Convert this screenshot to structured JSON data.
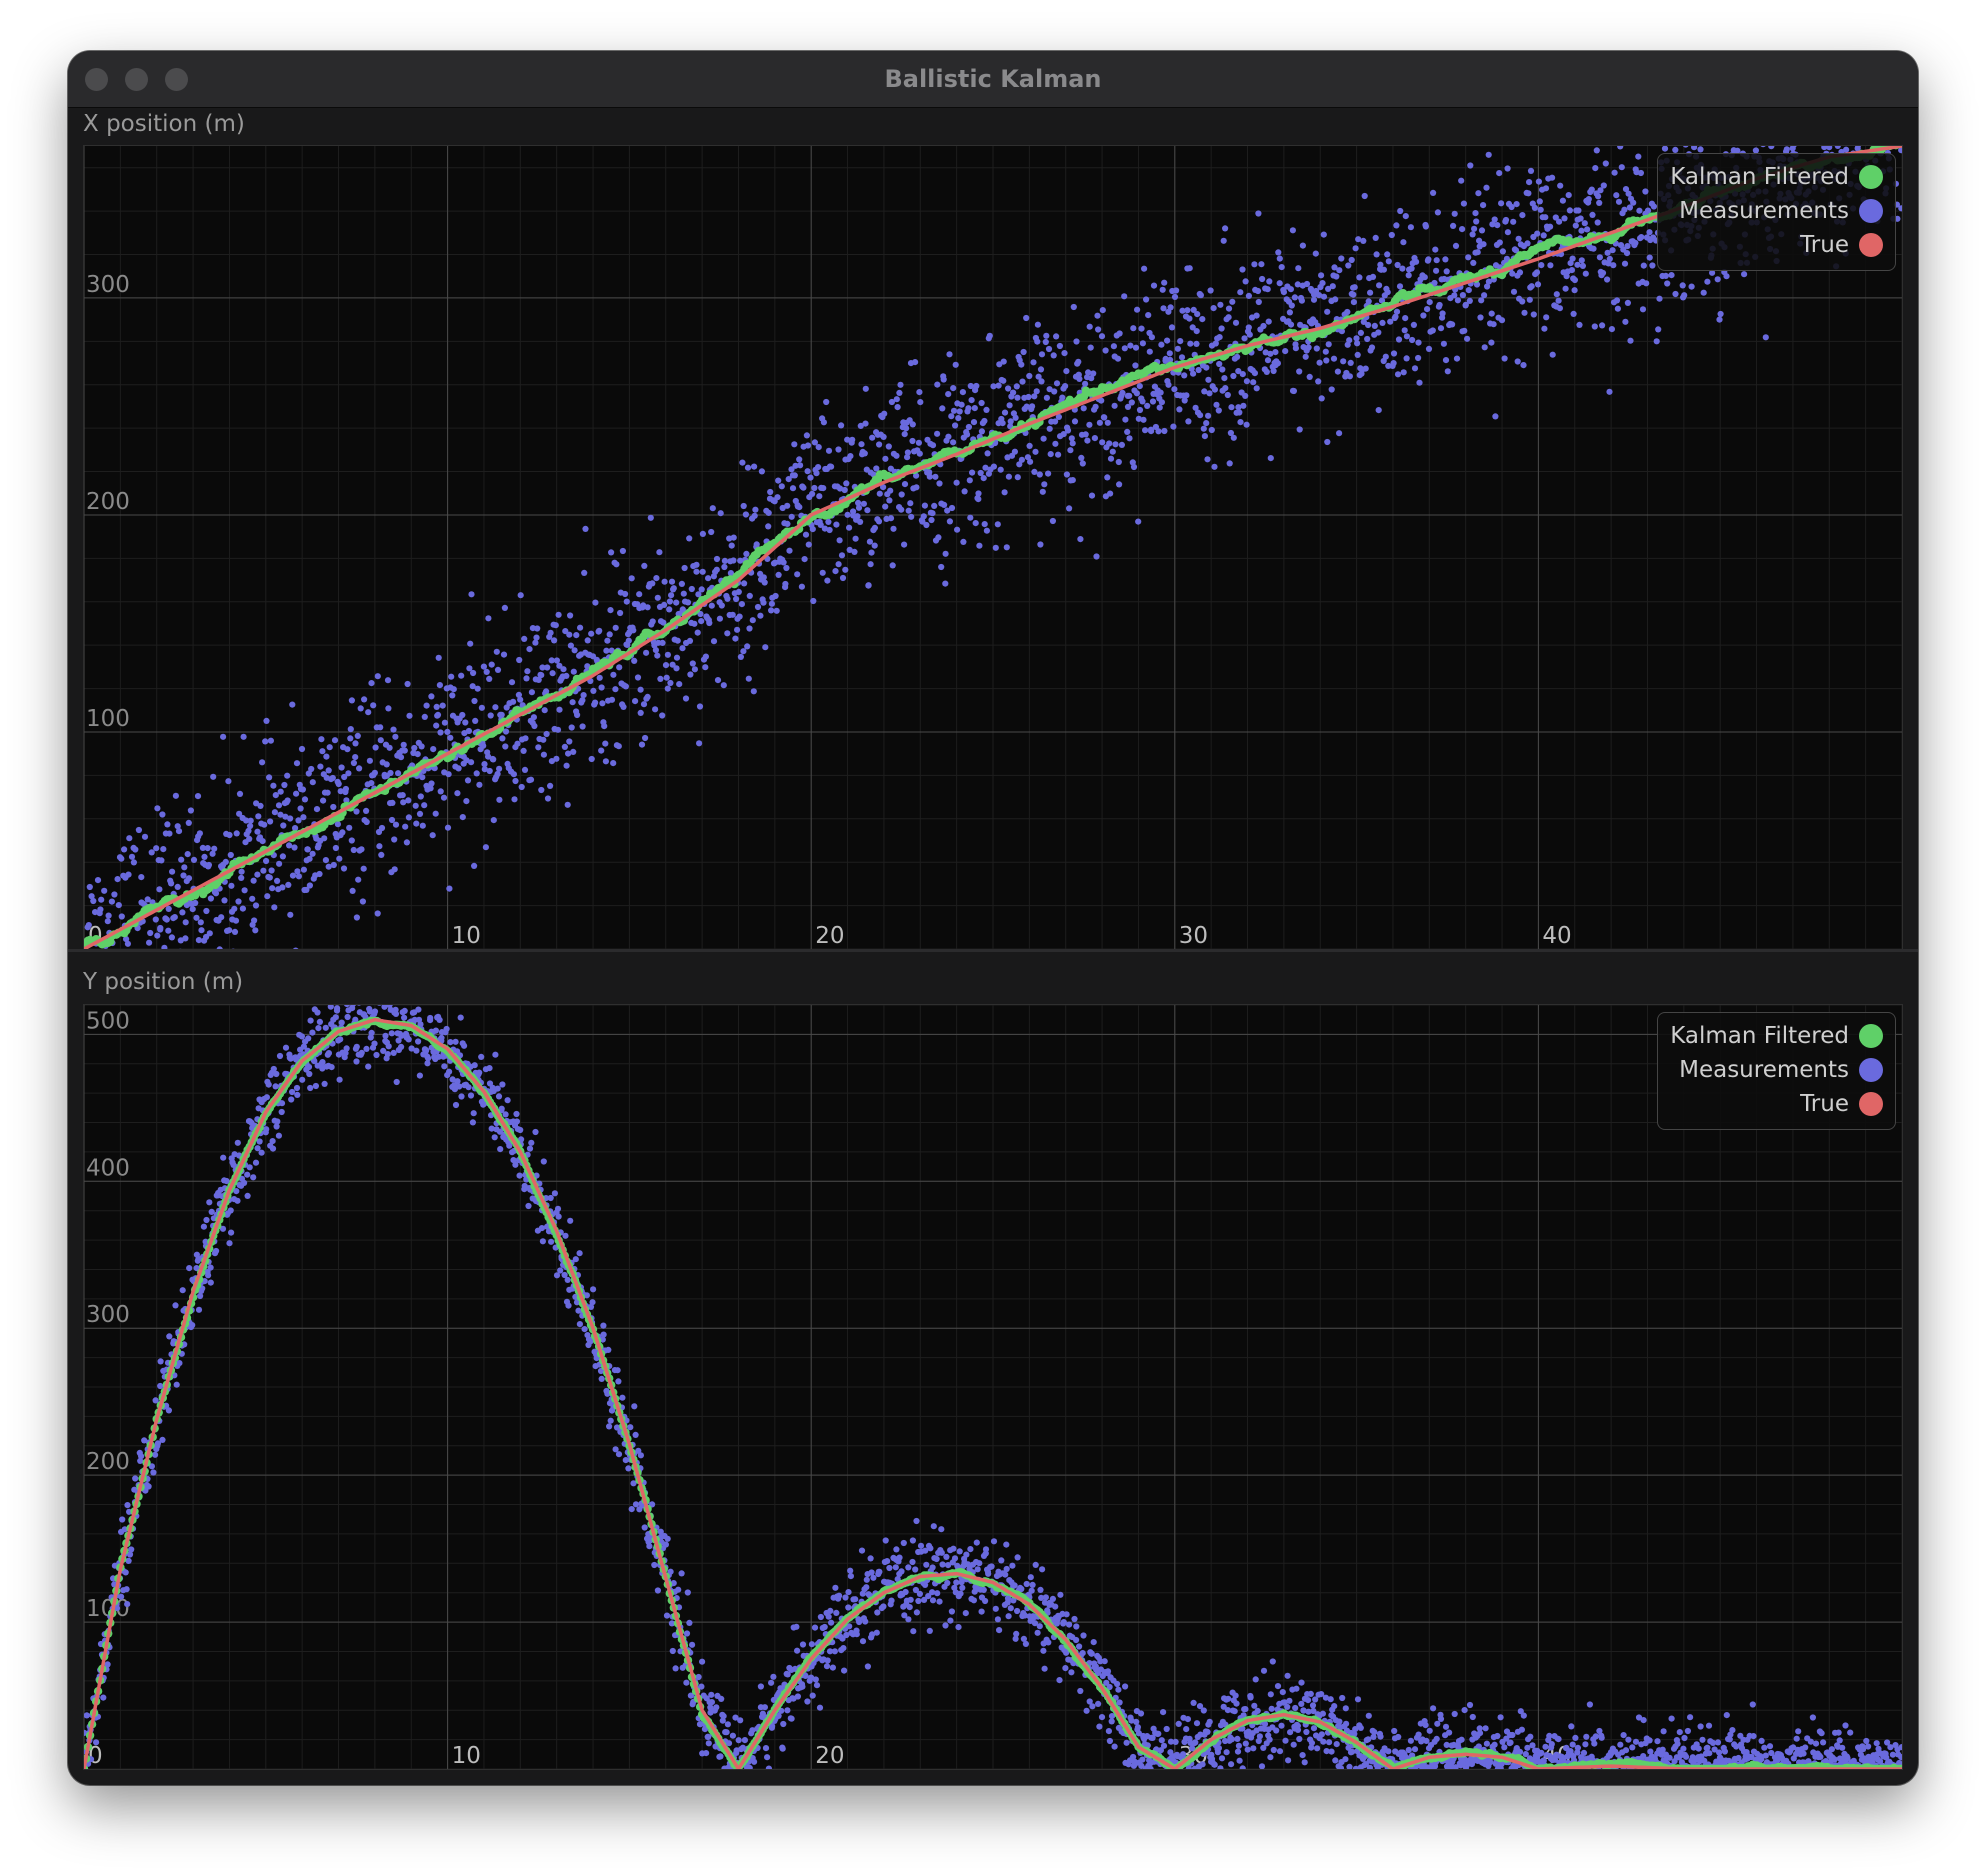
{
  "window": {
    "title": "Ballistic Kalman"
  },
  "chart_data": [
    {
      "type": "scatter",
      "title": "X position (m)",
      "xlim": [
        0,
        50
      ],
      "ylim": [
        0,
        370
      ],
      "x_ticks": [
        "0",
        "10",
        "20",
        "30",
        "40"
      ],
      "y_ticks": [
        "100",
        "200",
        "300"
      ],
      "legend_position": "top-right",
      "grid": true,
      "series": [
        {
          "name": "Kalman Filtered",
          "color": "#5fd068",
          "style": "points",
          "x": [
            0,
            2,
            4,
            6,
            8,
            10,
            12,
            14,
            16,
            18,
            20,
            22,
            24,
            26,
            28,
            30,
            32,
            34,
            36,
            38,
            40,
            42,
            44,
            46,
            48,
            50
          ],
          "y": [
            0,
            18,
            36,
            54,
            72,
            90,
            108,
            126,
            147,
            170,
            200,
            215,
            228,
            242,
            255,
            268,
            278,
            286,
            296,
            307,
            318,
            330,
            342,
            355,
            365,
            370
          ]
        },
        {
          "name": "Measurements",
          "color": "#6a6ade",
          "style": "noisy-points",
          "x": [
            0,
            2,
            4,
            6,
            8,
            10,
            12,
            14,
            16,
            18,
            20,
            22,
            24,
            26,
            28,
            30,
            32,
            34,
            36,
            38,
            40,
            42,
            44,
            46,
            48,
            50
          ],
          "y": [
            0,
            18,
            36,
            54,
            72,
            90,
            108,
            126,
            147,
            170,
            200,
            215,
            228,
            242,
            255,
            268,
            278,
            286,
            296,
            307,
            318,
            330,
            342,
            355,
            365,
            370
          ]
        },
        {
          "name": "True",
          "color": "#e06666",
          "style": "line",
          "x": [
            0,
            2,
            4,
            6,
            8,
            10,
            12,
            14,
            16,
            18,
            20,
            22,
            24,
            26,
            28,
            30,
            32,
            34,
            36,
            38,
            40,
            42,
            44,
            46,
            48,
            50
          ],
          "y": [
            0,
            18,
            36,
            54,
            72,
            90,
            108,
            126,
            147,
            170,
            200,
            215,
            228,
            242,
            255,
            268,
            278,
            286,
            296,
            307,
            318,
            330,
            342,
            355,
            365,
            370
          ]
        }
      ]
    },
    {
      "type": "scatter",
      "title": "Y position (m)",
      "xlim": [
        0,
        50
      ],
      "ylim": [
        0,
        520
      ],
      "x_ticks": [
        "0",
        "10",
        "20",
        "30",
        "40"
      ],
      "y_ticks": [
        "100",
        "200",
        "300",
        "400",
        "500"
      ],
      "legend_position": "top-right",
      "grid": true,
      "series": [
        {
          "name": "Kalman Filtered",
          "color": "#5fd068",
          "style": "points",
          "x": [
            0,
            1,
            2,
            3,
            4,
            5,
            6,
            7,
            8,
            9,
            10,
            11,
            12,
            13,
            14,
            15,
            16,
            17,
            18,
            19,
            20,
            21,
            22,
            23,
            24,
            25,
            26,
            27,
            28,
            29,
            30,
            31,
            32,
            33,
            34,
            35,
            36,
            37,
            38,
            39,
            40,
            42,
            44,
            46,
            48,
            50
          ],
          "y": [
            0,
            136,
            238,
            325,
            394,
            447,
            482,
            502,
            510,
            506,
            490,
            461,
            420,
            366,
            300,
            221,
            130,
            40,
            0,
            40,
            75,
            102,
            120,
            131,
            133,
            127,
            112,
            88,
            55,
            15,
            0,
            20,
            33,
            37,
            32,
            18,
            0,
            8,
            10,
            8,
            0,
            2,
            0,
            0,
            0,
            0
          ]
        },
        {
          "name": "Measurements",
          "color": "#6a6ade",
          "style": "noisy-points",
          "x": [
            0,
            1,
            2,
            3,
            4,
            5,
            6,
            7,
            8,
            9,
            10,
            11,
            12,
            13,
            14,
            15,
            16,
            17,
            18,
            19,
            20,
            21,
            22,
            23,
            24,
            25,
            26,
            27,
            28,
            29,
            30,
            31,
            32,
            33,
            34,
            35,
            36,
            37,
            38,
            39,
            40,
            42,
            44,
            46,
            48,
            50
          ],
          "y": [
            0,
            136,
            238,
            325,
            394,
            447,
            482,
            502,
            510,
            506,
            490,
            461,
            420,
            366,
            300,
            221,
            130,
            40,
            0,
            40,
            75,
            102,
            120,
            131,
            133,
            127,
            112,
            88,
            55,
            15,
            0,
            20,
            33,
            37,
            32,
            18,
            0,
            8,
            10,
            8,
            0,
            2,
            0,
            0,
            0,
            0
          ]
        },
        {
          "name": "True",
          "color": "#e06666",
          "style": "line",
          "x": [
            0,
            1,
            2,
            3,
            4,
            5,
            6,
            7,
            8,
            9,
            10,
            11,
            12,
            13,
            14,
            15,
            16,
            17,
            18,
            19,
            20,
            21,
            22,
            23,
            24,
            25,
            26,
            27,
            28,
            29,
            30,
            31,
            32,
            33,
            34,
            35,
            36,
            37,
            38,
            39,
            40,
            42,
            44,
            46,
            48,
            50
          ],
          "y": [
            0,
            136,
            238,
            325,
            394,
            447,
            482,
            502,
            510,
            506,
            490,
            461,
            420,
            366,
            300,
            221,
            130,
            40,
            0,
            40,
            75,
            102,
            120,
            131,
            133,
            127,
            112,
            88,
            55,
            15,
            0,
            20,
            33,
            37,
            32,
            18,
            0,
            8,
            10,
            8,
            0,
            2,
            0,
            0,
            0,
            0
          ]
        }
      ]
    }
  ]
}
